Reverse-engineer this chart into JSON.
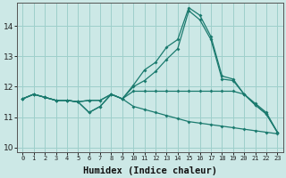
{
  "xlabel": "Humidex (Indice chaleur)",
  "background_color": "#cce8e6",
  "grid_color": "#9ecfcb",
  "line_color": "#1a7a6e",
  "x": [
    0,
    1,
    2,
    3,
    4,
    5,
    6,
    7,
    8,
    9,
    10,
    11,
    12,
    13,
    14,
    15,
    16,
    17,
    18,
    19,
    20,
    21,
    22,
    23
  ],
  "y_peak": [
    11.6,
    11.75,
    11.65,
    11.55,
    11.55,
    11.5,
    11.55,
    11.55,
    11.75,
    11.6,
    12.05,
    12.55,
    12.8,
    13.3,
    13.55,
    14.6,
    14.35,
    13.65,
    12.35,
    12.25,
    11.75,
    11.45,
    11.15,
    10.5
  ],
  "y_upper": [
    11.6,
    11.75,
    11.65,
    11.55,
    11.55,
    11.5,
    11.55,
    11.55,
    11.75,
    11.6,
    12.0,
    12.2,
    12.5,
    12.9,
    13.25,
    14.5,
    14.2,
    13.55,
    12.25,
    12.2,
    11.75,
    11.4,
    11.1,
    10.5
  ],
  "y_mid": [
    11.6,
    11.75,
    11.65,
    11.55,
    11.55,
    11.5,
    11.15,
    11.35,
    11.75,
    11.6,
    11.85,
    11.85,
    11.85,
    11.85,
    11.85,
    11.85,
    11.85,
    11.85,
    11.85,
    11.85,
    11.75,
    11.4,
    11.1,
    10.5
  ],
  "y_bottom": [
    11.6,
    11.75,
    11.65,
    11.55,
    11.55,
    11.5,
    11.15,
    11.35,
    11.75,
    11.6,
    11.35,
    11.25,
    11.15,
    11.05,
    10.95,
    10.85,
    10.8,
    10.75,
    10.7,
    10.65,
    10.6,
    10.55,
    10.5,
    10.45
  ],
  "ylim": [
    9.85,
    14.75
  ],
  "yticks": [
    10,
    11,
    12,
    13,
    14
  ],
  "xticks": [
    0,
    1,
    2,
    3,
    4,
    5,
    6,
    7,
    8,
    9,
    10,
    11,
    12,
    13,
    14,
    15,
    16,
    17,
    18,
    19,
    20,
    21,
    22,
    23
  ]
}
